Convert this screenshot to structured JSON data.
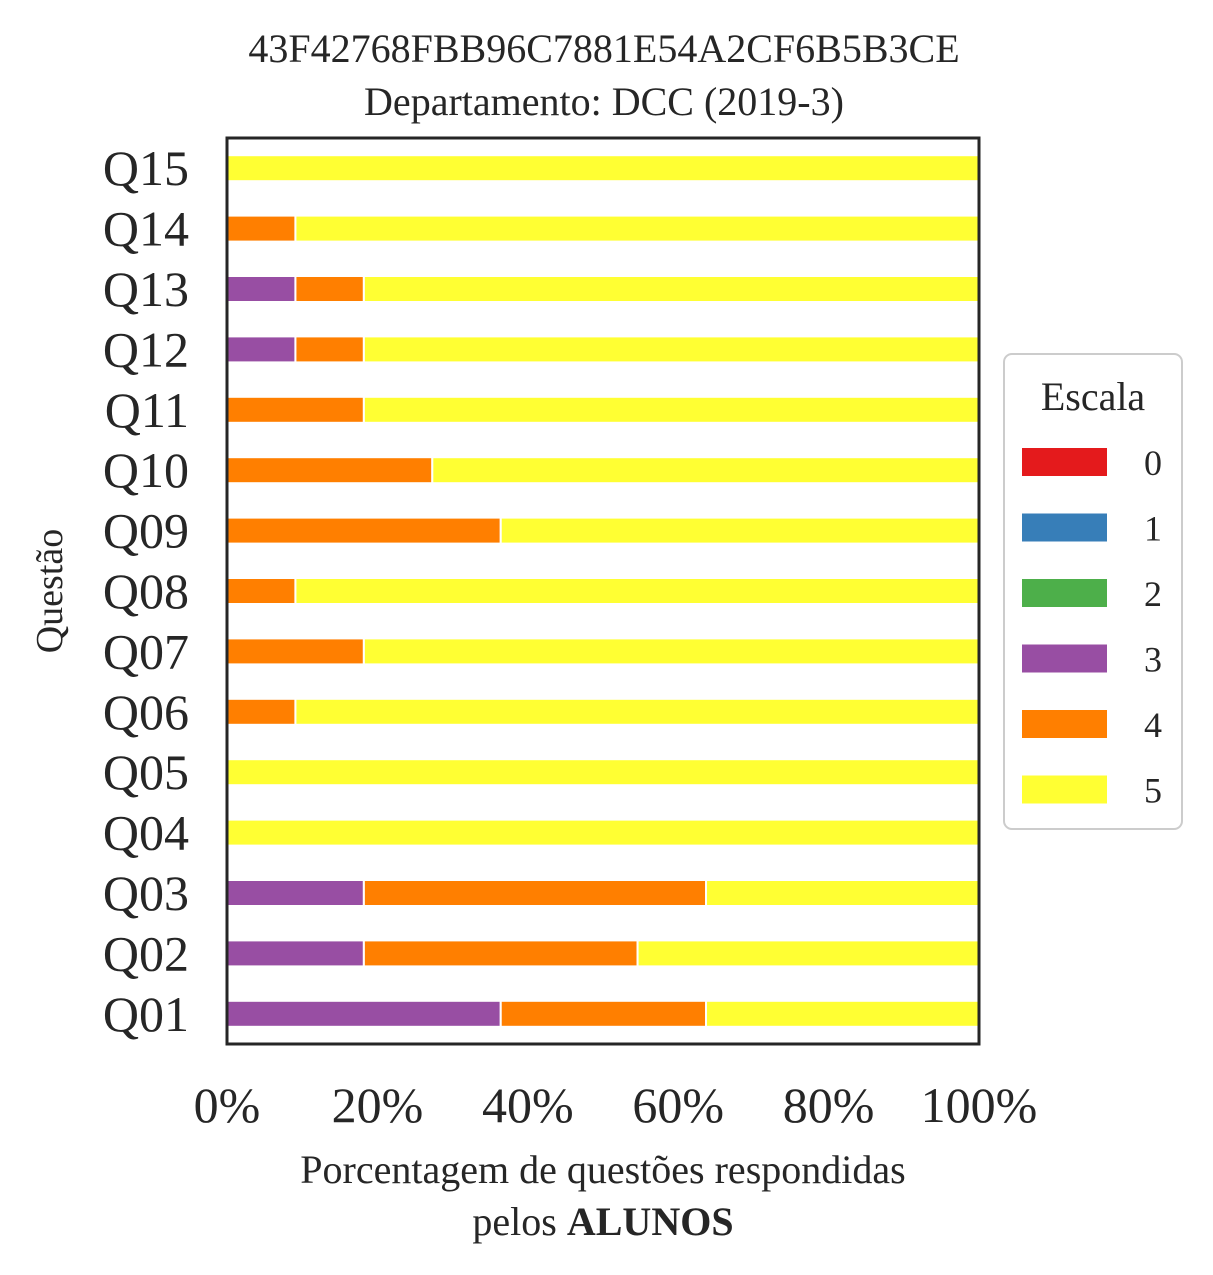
{
  "chart_data": {
    "type": "bar",
    "orientation": "horizontal",
    "stacked": true,
    "title": "43F42768FBB96C7881E54A2CF6B5B3CE",
    "subtitle": "Departamento: DCC (2019-3)",
    "ylabel": "Questão",
    "xlabel_line1": "Porcentagem de questões respondidas",
    "xlabel_line2_prefix": "pelos ",
    "xlabel_line2_bold": "ALUNOS",
    "xlim": [
      0,
      100
    ],
    "x_ticks": [
      0,
      20,
      40,
      60,
      80,
      100
    ],
    "x_tick_labels": [
      "0%",
      "20%",
      "40%",
      "60%",
      "80%",
      "100%"
    ],
    "categories": [
      "Q01",
      "Q02",
      "Q03",
      "Q04",
      "Q05",
      "Q06",
      "Q07",
      "Q08",
      "Q09",
      "Q10",
      "Q11",
      "Q12",
      "Q13",
      "Q14",
      "Q15"
    ],
    "legend": {
      "title": "Escala",
      "position": "center-right"
    },
    "series": [
      {
        "name": "0",
        "color": "#e41a1c",
        "values": [
          0,
          0,
          0,
          0,
          0,
          0,
          0,
          0,
          0,
          0,
          0,
          0,
          0,
          0,
          0
        ]
      },
      {
        "name": "1",
        "color": "#377eb8",
        "values": [
          0,
          0,
          0,
          0,
          0,
          0,
          0,
          0,
          0,
          0,
          0,
          0,
          0,
          0,
          0
        ]
      },
      {
        "name": "2",
        "color": "#4daf4a",
        "values": [
          0,
          0,
          0,
          0,
          0,
          0,
          0,
          0,
          0,
          0,
          0,
          0,
          0,
          0,
          0
        ]
      },
      {
        "name": "3",
        "color": "#984ea3",
        "values": [
          36.4,
          18.2,
          18.2,
          0,
          0,
          0,
          0,
          0,
          0,
          0,
          0,
          9.1,
          9.1,
          0,
          0
        ]
      },
      {
        "name": "4",
        "color": "#ff7f00",
        "values": [
          27.3,
          36.4,
          45.5,
          0,
          0,
          9.1,
          18.2,
          9.1,
          36.4,
          27.3,
          18.2,
          9.1,
          9.1,
          9.1,
          0
        ]
      },
      {
        "name": "5",
        "color": "#ffff33",
        "values": [
          36.3,
          45.4,
          36.3,
          100,
          100,
          90.9,
          81.8,
          90.9,
          63.6,
          72.7,
          81.8,
          81.8,
          81.8,
          90.9,
          100
        ]
      }
    ]
  }
}
